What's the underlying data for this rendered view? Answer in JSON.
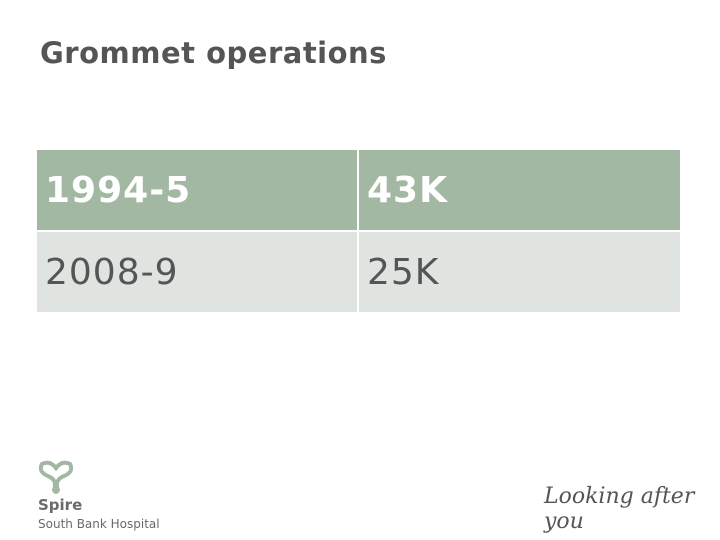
{
  "header": {
    "title": "Grommet operations"
  },
  "table": {
    "rows": [
      [
        "1994-5",
        "43K"
      ],
      [
        "2008-9",
        "25K"
      ]
    ]
  },
  "footer": {
    "logo_name": "Spire",
    "logo_subtitle": "South Bank Hospital",
    "tagline": "Looking after you"
  }
}
